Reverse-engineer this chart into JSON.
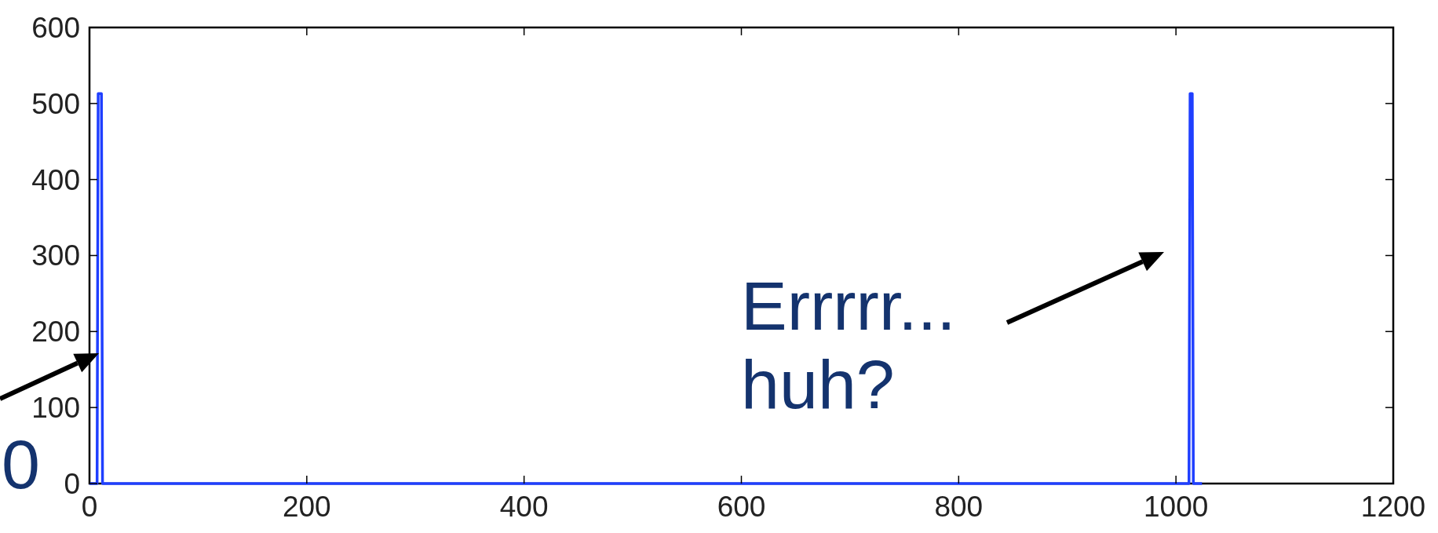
{
  "chart_data": {
    "type": "line",
    "x": [
      0,
      7,
      8,
      9,
      11,
      12,
      1012,
      1013,
      1014,
      1015,
      1016,
      1024
    ],
    "series": [
      {
        "color": "#1f3fff",
        "values": [
          0,
          0,
          513,
          513,
          513,
          0,
          0,
          513,
          513,
          513,
          0,
          0
        ]
      }
    ],
    "xlim": [
      0,
      1200
    ],
    "xticks": [
      0,
      200,
      400,
      600,
      800,
      1000,
      1200
    ],
    "ylim": [
      0,
      600
    ],
    "yticks": [
      0,
      100,
      200,
      300,
      400,
      500,
      600
    ],
    "grid": false,
    "marker": "none",
    "line_style": "solid",
    "annotations": [
      "Errrrr...\nhuh?",
      "0"
    ]
  }
}
